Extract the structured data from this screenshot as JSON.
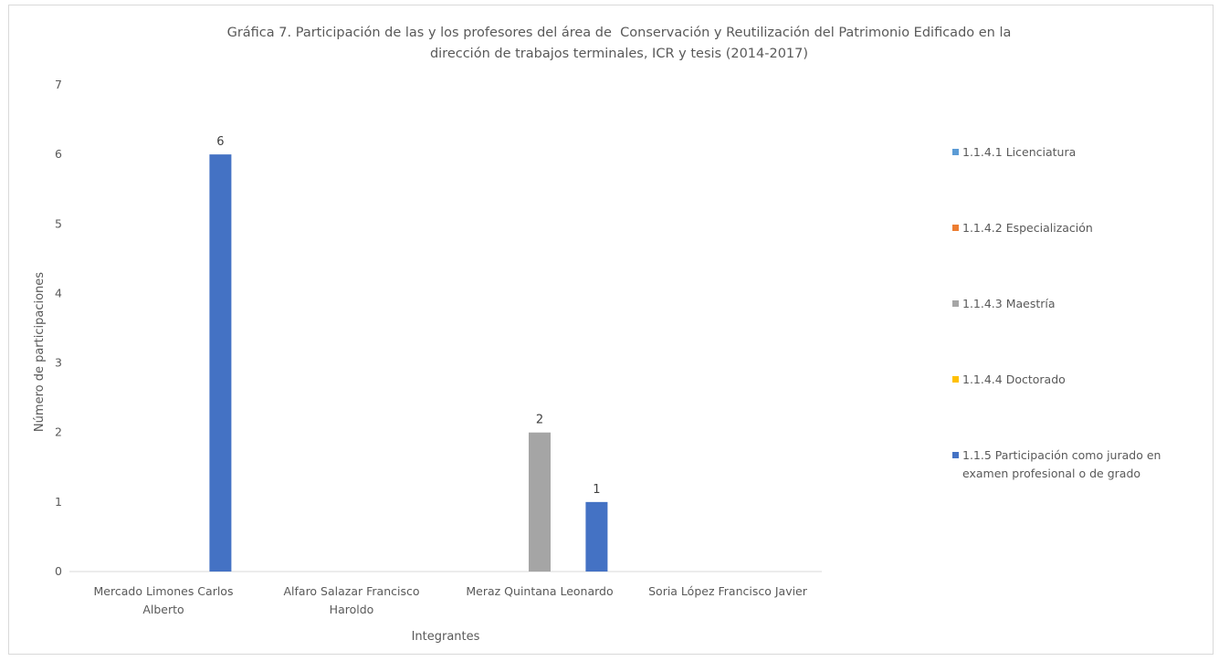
{
  "chart_data": {
    "type": "bar",
    "title_lines": [
      "Gráfica 7. Participación de las y los profesores del área de  Conservación y Reutilización del Patrimonio Edificado en la",
      "dirección de trabajos terminales, ICR y tesis (2014-2017)"
    ],
    "xlabel": "Integrantes",
    "ylabel": "Número de participaciones",
    "ylim": [
      0,
      7
    ],
    "yticks": [
      0,
      1,
      2,
      3,
      4,
      5,
      6,
      7
    ],
    "grid": false,
    "legend_position": "right",
    "categories": [
      [
        "Mercado Limones Carlos",
        "Alberto"
      ],
      [
        "Alfaro Salazar Francisco",
        "Haroldo"
      ],
      [
        "Meraz Quintana Leonardo"
      ],
      [
        "Soria López Francisco Javier"
      ]
    ],
    "series": [
      {
        "name": [
          "1.1.4.1 Licenciatura"
        ],
        "color": "#5b9bd5",
        "values": [
          null,
          null,
          null,
          null
        ]
      },
      {
        "name": [
          "1.1.4.2 Especialización"
        ],
        "color": "#ed7d31",
        "values": [
          null,
          null,
          null,
          null
        ]
      },
      {
        "name": [
          "1.1.4.3 Maestría"
        ],
        "color": "#a5a5a5",
        "values": [
          null,
          null,
          2,
          null
        ]
      },
      {
        "name": [
          "1.1.4.4 Doctorado"
        ],
        "color": "#ffc000",
        "values": [
          null,
          null,
          null,
          null
        ]
      },
      {
        "name": [
          "1.1.5 Participación como jurado en",
          "examen profesional o de grado"
        ],
        "color": "#4472c4",
        "values": [
          6,
          null,
          1,
          null
        ]
      }
    ]
  }
}
